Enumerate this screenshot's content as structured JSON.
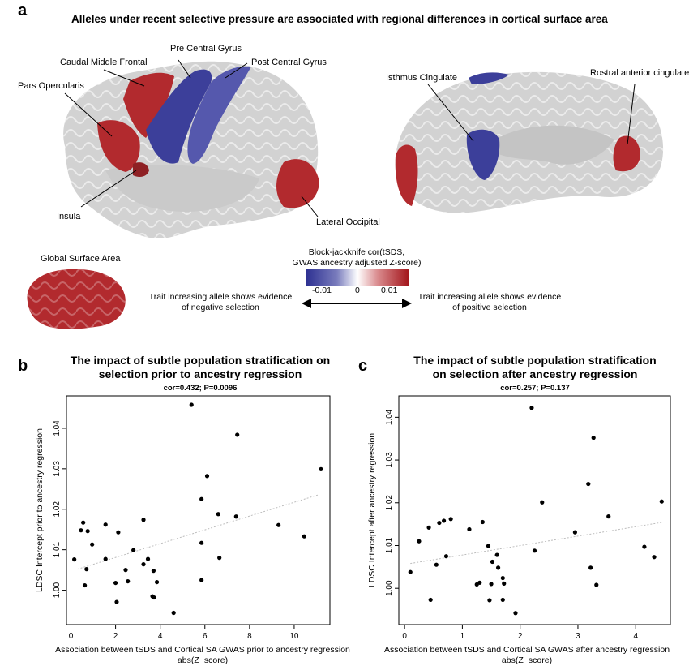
{
  "panel_a": {
    "letter": "a",
    "title": "Alleles under recent selective pressure are associated with regional differences in cortical surface area",
    "regions": {
      "pre_central": "Pre Central Gyrus",
      "caudal_middle_frontal": "Caudal Middle Frontal",
      "post_central": "Post Central Gyrus",
      "pars_opercularis": "Pars Opercularis",
      "insula": "Insula",
      "lateral_occipital": "Lateral Occipital",
      "isthmus_cingulate": "Isthmus Cingulate",
      "rostral_anterior_cingulate": "Rostral anterior cingulate",
      "global_surface_area": "Global Surface Area"
    },
    "legend": {
      "title_line1": "Block-jackknife cor(tSDS,",
      "title_line2": "GWAS ancestry adjusted Z-score)",
      "tick_neg": "-0.01",
      "tick_zero": "0",
      "tick_pos": "0.01",
      "neg_line1": "Trait increasing allele shows evidence",
      "neg_line2": "of negative selection",
      "pos_line1": "Trait increasing allele shows evidence",
      "pos_line2": "of positive selection",
      "color_neg": "#2e3192",
      "color_pos": "#a3161c"
    },
    "colors": {
      "brain_gray": "#d2d2d2",
      "red": "#b22a2e",
      "blue": "#3c3f9a",
      "blue_light": "#5558ad"
    }
  },
  "chart_data": [
    {
      "type": "scatter",
      "letter": "b",
      "title_line1": "The impact of subtle population stratification on",
      "title_line2": "selection prior to ancestry regression",
      "subtitle": "cor=0.432; P=0.0096",
      "xlabel_line1": "Association between tSDS and Cortical SA GWAS prior to ancestry regression",
      "xlabel_line2": "abs(Z−score)",
      "ylabel": "LDSC Intercept prior to ancestry regression",
      "xlim": [
        -0.2,
        11.6
      ],
      "ylim": [
        0.9915,
        1.048
      ],
      "xticks": [
        0,
        2,
        4,
        6,
        8,
        10
      ],
      "xtick_labels": [
        "0",
        "2",
        "4",
        "6",
        "8",
        "10"
      ],
      "yticks": [
        1.0,
        1.01,
        1.02,
        1.03,
        1.04
      ],
      "ytick_labels": [
        "1.00",
        "1.01",
        "1.02",
        "1.03",
        "1.04"
      ],
      "trend": {
        "x": [
          0.3,
          11.1
        ],
        "y": [
          1.0052,
          1.0236
        ]
      },
      "points": [
        {
          "x": 0.15,
          "y": 1.0076
        },
        {
          "x": 0.45,
          "y": 1.0148
        },
        {
          "x": 0.55,
          "y": 1.0167
        },
        {
          "x": 0.62,
          "y": 1.0012
        },
        {
          "x": 0.7,
          "y": 1.0052
        },
        {
          "x": 0.75,
          "y": 1.0146
        },
        {
          "x": 0.95,
          "y": 1.0113
        },
        {
          "x": 1.55,
          "y": 1.0162
        },
        {
          "x": 1.55,
          "y": 1.0077
        },
        {
          "x": 2.0,
          "y": 1.0018
        },
        {
          "x": 2.05,
          "y": 0.9971
        },
        {
          "x": 2.12,
          "y": 1.0143
        },
        {
          "x": 2.45,
          "y": 1.005
        },
        {
          "x": 2.55,
          "y": 1.0022
        },
        {
          "x": 2.8,
          "y": 1.0099
        },
        {
          "x": 3.25,
          "y": 1.0174
        },
        {
          "x": 3.25,
          "y": 1.0064
        },
        {
          "x": 3.45,
          "y": 1.0077
        },
        {
          "x": 3.65,
          "y": 0.9985
        },
        {
          "x": 3.72,
          "y": 0.9982
        },
        {
          "x": 3.7,
          "y": 1.0048
        },
        {
          "x": 3.85,
          "y": 1.002
        },
        {
          "x": 4.6,
          "y": 0.9944
        },
        {
          "x": 5.4,
          "y": 1.0458
        },
        {
          "x": 5.85,
          "y": 1.0225
        },
        {
          "x": 5.85,
          "y": 1.0117
        },
        {
          "x": 5.85,
          "y": 1.0025
        },
        {
          "x": 6.1,
          "y": 1.0282
        },
        {
          "x": 6.6,
          "y": 1.0188
        },
        {
          "x": 6.65,
          "y": 1.008
        },
        {
          "x": 7.4,
          "y": 1.0182
        },
        {
          "x": 7.45,
          "y": 1.0384
        },
        {
          "x": 9.3,
          "y": 1.0161
        },
        {
          "x": 10.45,
          "y": 1.0133
        },
        {
          "x": 11.2,
          "y": 1.0299
        }
      ]
    },
    {
      "type": "scatter",
      "letter": "c",
      "title_line1": "The impact of subtle population stratification",
      "title_line2": "on selection after ancestry regression",
      "subtitle": "cor=0.257; P=0.137",
      "xlabel_line1": "Association between tSDS and Cortical SA GWAS after ancestry regression",
      "xlabel_line2": "abs(Z−score)",
      "ylabel": "LDSC Intercept after ancestry regression",
      "xlim": [
        -0.1,
        4.6
      ],
      "ylim": [
        0.9915,
        1.045
      ],
      "xticks": [
        0,
        1,
        2,
        3,
        4
      ],
      "xtick_labels": [
        "0",
        "1",
        "2",
        "3",
        "4"
      ],
      "yticks": [
        1.0,
        1.01,
        1.02,
        1.03,
        1.04
      ],
      "ytick_labels": [
        "1.00",
        "1.01",
        "1.02",
        "1.03",
        "1.04"
      ],
      "trend": {
        "x": [
          0.1,
          4.45
        ],
        "y": [
          1.0058,
          1.0154
        ]
      },
      "points": [
        {
          "x": 0.1,
          "y": 1.0038
        },
        {
          "x": 0.25,
          "y": 1.011
        },
        {
          "x": 0.42,
          "y": 1.0142
        },
        {
          "x": 0.45,
          "y": 0.9973
        },
        {
          "x": 0.55,
          "y": 1.0055
        },
        {
          "x": 0.6,
          "y": 1.0153
        },
        {
          "x": 0.68,
          "y": 1.0158
        },
        {
          "x": 0.72,
          "y": 1.0075
        },
        {
          "x": 0.8,
          "y": 1.0162
        },
        {
          "x": 1.12,
          "y": 1.0138
        },
        {
          "x": 1.25,
          "y": 1.0009
        },
        {
          "x": 1.3,
          "y": 1.0013
        },
        {
          "x": 1.35,
          "y": 1.0155
        },
        {
          "x": 1.45,
          "y": 1.0099
        },
        {
          "x": 1.47,
          "y": 0.9972
        },
        {
          "x": 1.5,
          "y": 1.001
        },
        {
          "x": 1.52,
          "y": 1.0062
        },
        {
          "x": 1.6,
          "y": 1.0078
        },
        {
          "x": 1.62,
          "y": 1.0048
        },
        {
          "x": 1.7,
          "y": 1.0024
        },
        {
          "x": 1.72,
          "y": 1.0011
        },
        {
          "x": 1.7,
          "y": 0.9973
        },
        {
          "x": 1.92,
          "y": 0.9942
        },
        {
          "x": 2.2,
          "y": 1.0422
        },
        {
          "x": 2.25,
          "y": 1.0088
        },
        {
          "x": 2.38,
          "y": 1.0201
        },
        {
          "x": 2.95,
          "y": 1.0131
        },
        {
          "x": 3.18,
          "y": 1.0244
        },
        {
          "x": 3.22,
          "y": 1.0048
        },
        {
          "x": 3.27,
          "y": 1.0352
        },
        {
          "x": 3.32,
          "y": 1.0008
        },
        {
          "x": 3.53,
          "y": 1.0168
        },
        {
          "x": 4.15,
          "y": 1.0097
        },
        {
          "x": 4.32,
          "y": 1.0073
        },
        {
          "x": 4.45,
          "y": 1.0203
        }
      ]
    }
  ]
}
